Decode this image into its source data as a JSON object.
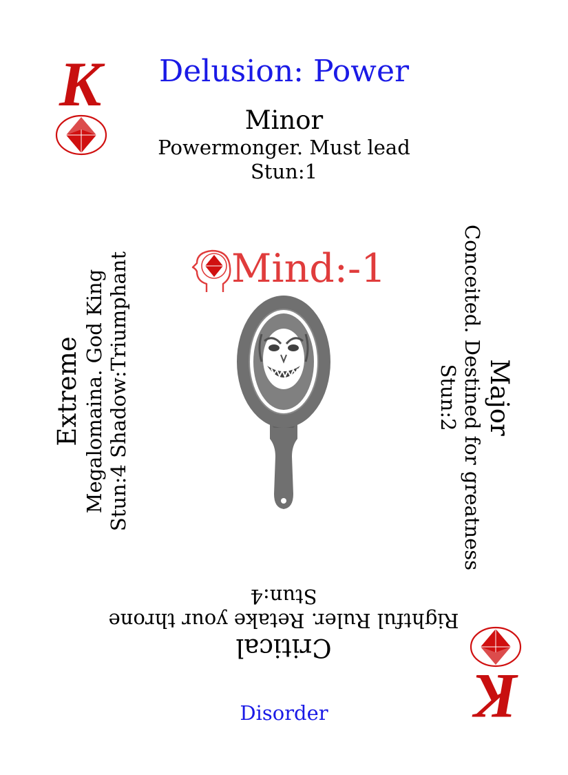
{
  "card": {
    "rank": "K",
    "suit_icon": "diamond-in-circle-icon",
    "title": "Delusion: Power",
    "stat": {
      "icon": "head-with-diamond-icon",
      "text": "Mind:-1"
    },
    "image_icon": "hand-mirror-grinning-face-icon",
    "bands": {
      "minor": {
        "title": "Minor",
        "description": "Powermonger. Must lead",
        "stun": "Stun:1"
      },
      "major": {
        "title": "Major",
        "description": "Conceited. Destined for greatness",
        "stun": "Stun:2"
      },
      "critical": {
        "title": "Critical",
        "description": "Rightful Ruler. Retake your throne",
        "stun": "Stun:4"
      },
      "extreme": {
        "title": "Extreme",
        "description": "Megalomaina. God King",
        "stun": "Stun:4 Shadow:Triumphant"
      }
    },
    "footer": "Disorder"
  },
  "colors": {
    "title": "#1a1ae6",
    "footer": "#1a1ae6",
    "rank": "#c80f0f",
    "suit": "#d01010",
    "stat": "#e03c3c",
    "mirror": "#707070"
  }
}
